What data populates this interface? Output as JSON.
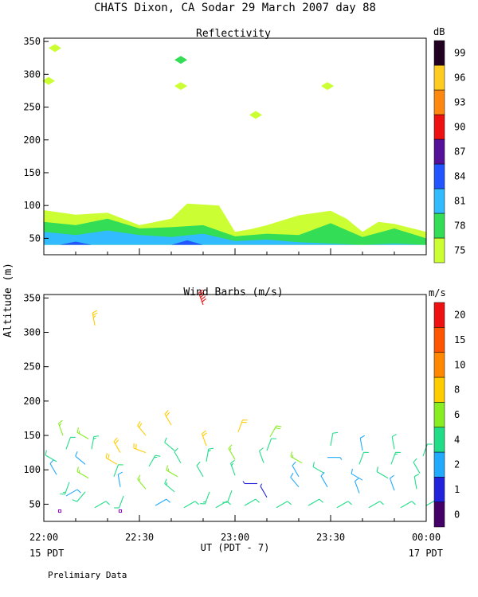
{
  "header": {
    "title": "CHATS Dixon, CA   Sodar  29 March 2007  day  88"
  },
  "footer": {
    "x_axis_label": "UT  (PDT - 7)",
    "left_date": "15 PDT",
    "right_date": "17 PDT",
    "note": "Prelimiary Data"
  },
  "shared_axis": {
    "ylabel": "Altitude (m)",
    "x_ticks": [
      "22:00",
      "22:30",
      "23:00",
      "23:30",
      "00:00"
    ]
  },
  "colors": {
    "reflectivity_scale": [
      "#ccff33",
      "#33dd55",
      "#33bbff",
      "#2255ff",
      "#55119a",
      "#ee1111",
      "#ff8811",
      "#ffcc22",
      "#220022"
    ],
    "wind_scale": [
      "#440066",
      "#2222dd",
      "#22aaff",
      "#22dd88",
      "#88ee22",
      "#ffcc00",
      "#ff8800",
      "#ff5500",
      "#ee1111"
    ]
  },
  "chart_data": [
    {
      "type": "area",
      "title": "Reflectivity",
      "x_unit": "minutes after 22:00 UT",
      "xlim": [
        0,
        120
      ],
      "ylim": [
        25,
        355
      ],
      "yticks": [
        50,
        100,
        150,
        200,
        250,
        300,
        350
      ],
      "colorbar": {
        "unit": "dB",
        "ticks": [
          "75",
          "78",
          "81",
          "84",
          "87",
          "90",
          "93",
          "96",
          "99"
        ]
      },
      "series": [
        {
          "name": "75",
          "x": [
            0,
            10,
            20,
            30,
            40,
            45,
            55,
            60,
            65,
            70,
            80,
            90,
            95,
            100,
            105,
            110,
            120
          ],
          "values": [
            93,
            86,
            89,
            70,
            80,
            103,
            100,
            60,
            64,
            70,
            85,
            92,
            80,
            60,
            75,
            72,
            60
          ]
        },
        {
          "name": "78",
          "x": [
            0,
            10,
            20,
            30,
            40,
            50,
            60,
            70,
            80,
            90,
            100,
            110,
            120
          ],
          "values": [
            75,
            70,
            80,
            65,
            67,
            70,
            53,
            57,
            55,
            73,
            52,
            65,
            50
          ]
        },
        {
          "name": "81",
          "x": [
            0,
            10,
            20,
            30,
            40,
            50,
            60,
            70,
            80,
            90,
            100,
            110,
            120
          ],
          "values": [
            60,
            55,
            62,
            55,
            52,
            57,
            46,
            48,
            44,
            42,
            40,
            42,
            40
          ]
        },
        {
          "name": "84",
          "x": [
            5,
            10,
            15,
            40,
            45,
            50
          ],
          "values": [
            40,
            45,
            40,
            40,
            47,
            40
          ]
        }
      ],
      "upper_patches": [
        {
          "x": 3.5,
          "y": 340,
          "value": "75"
        },
        {
          "x": 1.5,
          "y": 290,
          "value": "75"
        },
        {
          "x": 43,
          "y": 322,
          "value": "78"
        },
        {
          "x": 43,
          "y": 282,
          "value": "75"
        },
        {
          "x": 66.5,
          "y": 238,
          "value": "75"
        },
        {
          "x": 89,
          "y": 282,
          "value": "75"
        }
      ]
    },
    {
      "type": "scatter",
      "title": "Wind Barbs (m/s)",
      "x_unit": "minutes after 22:00 UT",
      "xlim": [
        0,
        120
      ],
      "ylim": [
        25,
        355
      ],
      "yticks": [
        50,
        100,
        150,
        200,
        250,
        300,
        350
      ],
      "colorbar": {
        "unit": "m/s",
        "ticks": [
          "0",
          "1",
          "2",
          "4",
          "6",
          "8",
          "10",
          "15",
          "20"
        ]
      },
      "barbs": [
        {
          "x": 6,
          "y": 150,
          "speed": 6,
          "dir": 340
        },
        {
          "x": 7,
          "y": 130,
          "speed": 4,
          "dir": 20
        },
        {
          "x": 4,
          "y": 112,
          "speed": 4,
          "dir": 300
        },
        {
          "x": 4,
          "y": 93,
          "speed": 3,
          "dir": 330
        },
        {
          "x": 8,
          "y": 82,
          "speed": 5,
          "dir": 200
        },
        {
          "x": 7,
          "y": 62,
          "speed": 3,
          "dir": 60
        },
        {
          "x": 5,
          "y": 40,
          "speed": 0,
          "dir": 0
        },
        {
          "x": 14,
          "y": 145,
          "speed": 6,
          "dir": 300
        },
        {
          "x": 15,
          "y": 130,
          "speed": 5,
          "dir": 10
        },
        {
          "x": 13,
          "y": 108,
          "speed": 3,
          "dir": 310
        },
        {
          "x": 14,
          "y": 88,
          "speed": 6,
          "dir": 300
        },
        {
          "x": 13,
          "y": 68,
          "speed": 4,
          "dir": 220
        },
        {
          "x": 16,
          "y": 45,
          "speed": 4,
          "dir": 60
        },
        {
          "x": 16,
          "y": 310,
          "speed": 9,
          "dir": 350
        },
        {
          "x": 24,
          "y": 125,
          "speed": 8,
          "dir": 330
        },
        {
          "x": 23,
          "y": 108,
          "speed": 8,
          "dir": 300
        },
        {
          "x": 22,
          "y": 90,
          "speed": 4,
          "dir": 20
        },
        {
          "x": 24,
          "y": 75,
          "speed": 3,
          "dir": 350
        },
        {
          "x": 25,
          "y": 62,
          "speed": 4,
          "dir": 200
        },
        {
          "x": 24,
          "y": 40,
          "speed": 0,
          "dir": 0
        },
        {
          "x": 32,
          "y": 150,
          "speed": 8,
          "dir": 320
        },
        {
          "x": 32,
          "y": 125,
          "speed": 8,
          "dir": 290
        },
        {
          "x": 33,
          "y": 105,
          "speed": 5,
          "dir": 30
        },
        {
          "x": 32,
          "y": 72,
          "speed": 6,
          "dir": 320
        },
        {
          "x": 35,
          "y": 48,
          "speed": 3,
          "dir": 60
        },
        {
          "x": 40,
          "y": 165,
          "speed": 8,
          "dir": 330
        },
        {
          "x": 41,
          "y": 128,
          "speed": 4,
          "dir": 310
        },
        {
          "x": 43,
          "y": 110,
          "speed": 4,
          "dir": 330
        },
        {
          "x": 42,
          "y": 90,
          "speed": 6,
          "dir": 300
        },
        {
          "x": 41,
          "y": 68,
          "speed": 5,
          "dir": 310
        },
        {
          "x": 44,
          "y": 45,
          "speed": 4,
          "dir": 60
        },
        {
          "x": 50,
          "y": 340,
          "speed": 20,
          "dir": 340
        },
        {
          "x": 51,
          "y": 135,
          "speed": 8,
          "dir": 340
        },
        {
          "x": 51,
          "y": 112,
          "speed": 5,
          "dir": 10
        },
        {
          "x": 50,
          "y": 90,
          "speed": 4,
          "dir": 330
        },
        {
          "x": 52,
          "y": 68,
          "speed": 5,
          "dir": 200
        },
        {
          "x": 54,
          "y": 45,
          "speed": 4,
          "dir": 60
        },
        {
          "x": 61,
          "y": 155,
          "speed": 8,
          "dir": 20
        },
        {
          "x": 60,
          "y": 115,
          "speed": 6,
          "dir": 330
        },
        {
          "x": 60,
          "y": 92,
          "speed": 5,
          "dir": 340
        },
        {
          "x": 59,
          "y": 70,
          "speed": 4,
          "dir": 200
        },
        {
          "x": 63,
          "y": 48,
          "speed": 4,
          "dir": 60
        },
        {
          "x": 71,
          "y": 148,
          "speed": 7,
          "dir": 30
        },
        {
          "x": 70,
          "y": 128,
          "speed": 4,
          "dir": 20
        },
        {
          "x": 69,
          "y": 110,
          "speed": 4,
          "dir": 340
        },
        {
          "x": 67,
          "y": 80,
          "speed": 1,
          "dir": 270
        },
        {
          "x": 70,
          "y": 60,
          "speed": 1,
          "dir": 330
        },
        {
          "x": 73,
          "y": 45,
          "speed": 4,
          "dir": 60
        },
        {
          "x": 81,
          "y": 110,
          "speed": 6,
          "dir": 300
        },
        {
          "x": 80,
          "y": 90,
          "speed": 3,
          "dir": 330
        },
        {
          "x": 80,
          "y": 75,
          "speed": 3,
          "dir": 320
        },
        {
          "x": 83,
          "y": 48,
          "speed": 4,
          "dir": 60
        },
        {
          "x": 90,
          "y": 135,
          "speed": 4,
          "dir": 10
        },
        {
          "x": 89,
          "y": 118,
          "speed": 2,
          "dir": 90
        },
        {
          "x": 88,
          "y": 95,
          "speed": 4,
          "dir": 300
        },
        {
          "x": 89,
          "y": 75,
          "speed": 3,
          "dir": 330
        },
        {
          "x": 92,
          "y": 45,
          "speed": 4,
          "dir": 60
        },
        {
          "x": 100,
          "y": 128,
          "speed": 3,
          "dir": 350
        },
        {
          "x": 99,
          "y": 108,
          "speed": 4,
          "dir": 20
        },
        {
          "x": 100,
          "y": 85,
          "speed": 3,
          "dir": 300
        },
        {
          "x": 99,
          "y": 66,
          "speed": 3,
          "dir": 340
        },
        {
          "x": 102,
          "y": 45,
          "speed": 4,
          "dir": 60
        },
        {
          "x": 110,
          "y": 130,
          "speed": 4,
          "dir": 350
        },
        {
          "x": 109,
          "y": 108,
          "speed": 5,
          "dir": 20
        },
        {
          "x": 108,
          "y": 88,
          "speed": 4,
          "dir": 300
        },
        {
          "x": 110,
          "y": 70,
          "speed": 3,
          "dir": 340
        },
        {
          "x": 112,
          "y": 45,
          "speed": 4,
          "dir": 60
        },
        {
          "x": 119,
          "y": 120,
          "speed": 4,
          "dir": 20
        },
        {
          "x": 118,
          "y": 95,
          "speed": 4,
          "dir": 330
        },
        {
          "x": 117,
          "y": 72,
          "speed": 4,
          "dir": 350
        },
        {
          "x": 120,
          "y": 48,
          "speed": 4,
          "dir": 60
        }
      ]
    }
  ]
}
